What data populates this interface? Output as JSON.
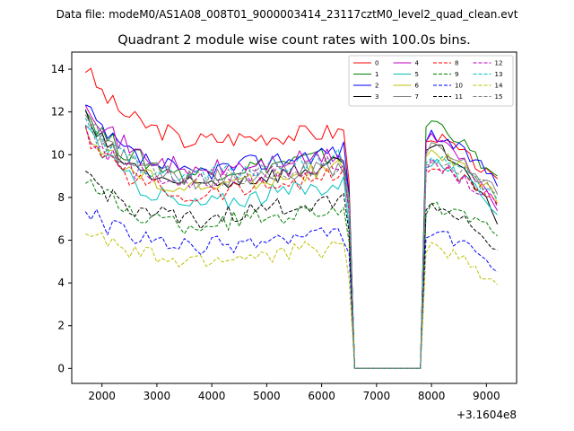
{
  "suptitle": "Data file: modeM0/AS1A08_008T01_9000003414_23117cztM0_level2_quad_clean.evt",
  "chart_data": {
    "type": "line",
    "title": "Quadrant 2 module wise count rates with 100.0s bins.",
    "xlabel": "",
    "ylabel": "",
    "x_offset_label": "+3.1604e8",
    "xlim": [
      1450,
      9550
    ],
    "ylim": [
      -0.7,
      14.8
    ],
    "x_ticks": [
      2000,
      3000,
      4000,
      5000,
      6000,
      7000,
      8000,
      9000
    ],
    "x_tick_labels": [
      "2000",
      "3000",
      "4000",
      "5000",
      "6000",
      "7000",
      "8000",
      "9000"
    ],
    "y_ticks": [
      0,
      2,
      4,
      6,
      8,
      10,
      12,
      14
    ],
    "y_tick_labels": [
      "0",
      "2",
      "4",
      "6",
      "8",
      "10",
      "12",
      "14"
    ],
    "x_start": 1700,
    "x_step": 100,
    "gap": {
      "start": 6600,
      "end": 7800,
      "value": 0
    },
    "x_end": 9200,
    "grid": false,
    "legend_position": "top-right",
    "legend_columns": 4,
    "series": [
      {
        "name": "0",
        "color": "#ff0000",
        "style": "solid",
        "start": 14.1,
        "mid": 10.6,
        "end": 11.1,
        "second_start": 11.0,
        "second_end": 8.6
      },
      {
        "name": "1",
        "color": "#008000",
        "style": "solid",
        "start": 12.1,
        "mid": 9.0,
        "end": 10.0,
        "second_start": 11.7,
        "second_end": 8.7
      },
      {
        "name": "2",
        "color": "#0000ff",
        "style": "solid",
        "start": 12.2,
        "mid": 9.0,
        "end": 10.3,
        "second_start": 11.0,
        "second_end": 8.8
      },
      {
        "name": "3",
        "color": "#000000",
        "style": "solid",
        "start": 11.8,
        "mid": 8.4,
        "end": 9.6,
        "second_start": 10.6,
        "second_end": 7.0
      },
      {
        "name": "4",
        "color": "#bf00bf",
        "style": "solid",
        "start": 12.7,
        "mid": 9.1,
        "end": 10.0,
        "second_start": 11.0,
        "second_end": 7.6
      },
      {
        "name": "5",
        "color": "#00bfbf",
        "style": "solid",
        "start": 11.6,
        "mid": 7.5,
        "end": 8.7,
        "second_start": 9.8,
        "second_end": 7.4
      },
      {
        "name": "6",
        "color": "#bfbf00",
        "style": "solid",
        "start": 11.3,
        "mid": 8.3,
        "end": 9.4,
        "second_start": 10.3,
        "second_end": 7.9
      },
      {
        "name": "7",
        "color": "#808080",
        "style": "solid",
        "start": 11.7,
        "mid": 8.7,
        "end": 9.5,
        "second_start": 10.4,
        "second_end": 8.3
      },
      {
        "name": "8",
        "color": "#ff0000",
        "style": "dashed",
        "start": 11.0,
        "mid": 8.0,
        "end": 9.1,
        "second_start": 9.5,
        "second_end": 7.8
      },
      {
        "name": "9",
        "color": "#008000",
        "style": "dashed",
        "start": 9.0,
        "mid": 6.6,
        "end": 7.6,
        "second_start": 7.6,
        "second_end": 6.3
      },
      {
        "name": "10",
        "color": "#0000ff",
        "style": "dashed",
        "start": 7.5,
        "mid": 5.6,
        "end": 6.3,
        "second_start": 6.5,
        "second_end": 4.6
      },
      {
        "name": "11",
        "color": "#000000",
        "style": "dashed",
        "start": 9.2,
        "mid": 6.8,
        "end": 8.0,
        "second_start": 7.8,
        "second_end": 5.6
      },
      {
        "name": "12",
        "color": "#bf00bf",
        "style": "dashed",
        "start": 11.1,
        "mid": 8.6,
        "end": 9.6,
        "second_start": 9.6,
        "second_end": 7.6
      },
      {
        "name": "13",
        "color": "#00bfbf",
        "style": "dashed",
        "start": 11.3,
        "mid": 8.9,
        "end": 9.9,
        "second_start": 10.0,
        "second_end": 7.9
      },
      {
        "name": "14",
        "color": "#bfbf00",
        "style": "dashed",
        "start": 6.6,
        "mid": 4.9,
        "end": 5.7,
        "second_start": 5.8,
        "second_end": 3.9
      },
      {
        "name": "15",
        "color": "#808080",
        "style": "dashed",
        "start": 11.4,
        "mid": 8.8,
        "end": 9.4,
        "second_start": 9.9,
        "second_end": 8.1
      }
    ]
  }
}
